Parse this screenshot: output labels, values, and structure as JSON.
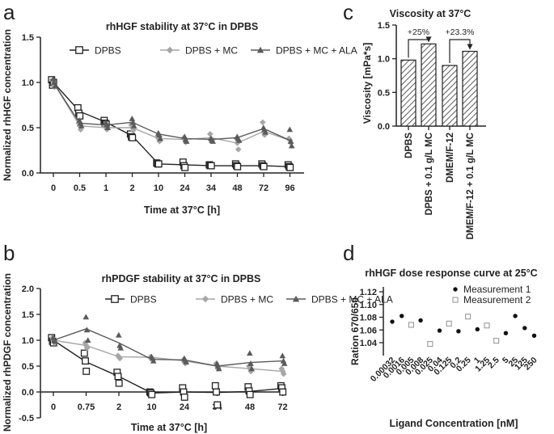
{
  "panel_letters": [
    "a",
    "b",
    "c",
    "d"
  ],
  "chart_data": [
    {
      "panel": "a",
      "type": "line",
      "title": "rhHGF stability at 37°C in DPBS",
      "xlabel": "Time at 37°C [h]",
      "ylabel": "Normalized rhHGF concentration",
      "categories": [
        "0",
        "0.5",
        "1",
        "2",
        "10",
        "24",
        "34",
        "48",
        "72",
        "96"
      ],
      "ylim": [
        0,
        1.5
      ],
      "yticks": [
        "0.0",
        "0.5",
        "1.0",
        "1.5"
      ],
      "legend_position": "top",
      "series": [
        {
          "name": "DPBS",
          "marker": "square-open",
          "color": "#222222",
          "mean": [
            1.0,
            0.68,
            0.56,
            0.41,
            0.1,
            0.09,
            0.08,
            0.08,
            0.08,
            0.07
          ],
          "points": [
            [
              1.03,
              0.97,
              1.0
            ],
            [
              0.72,
              0.66,
              0.63
            ],
            [
              0.58,
              0.55,
              0.54
            ],
            [
              0.43,
              0.4,
              0.39
            ],
            [
              0.11,
              0.1,
              0.1
            ],
            [
              0.12,
              0.08,
              0.06
            ],
            [
              0.09,
              0.08,
              0.08
            ],
            [
              0.1,
              0.08,
              0.07
            ],
            [
              0.1,
              0.08,
              0.07
            ],
            [
              0.09,
              0.07,
              0.06
            ]
          ]
        },
        {
          "name": "DPBS + MC",
          "marker": "diamond",
          "color": "#a6a6a6",
          "mean": [
            1.0,
            0.52,
            0.5,
            0.5,
            0.38,
            0.37,
            0.39,
            0.33,
            0.46,
            0.36
          ],
          "points": [
            [
              1.02,
              0.98,
              0.95
            ],
            [
              0.55,
              0.52,
              0.48
            ],
            [
              0.52,
              0.5,
              0.48
            ],
            [
              0.53,
              0.5,
              0.47
            ],
            [
              0.4,
              0.38,
              0.35
            ],
            [
              0.39,
              0.37,
              0.34
            ],
            [
              0.43,
              0.38,
              0.36
            ],
            [
              0.38,
              0.33,
              0.26
            ],
            [
              0.56,
              0.45,
              0.42
            ],
            [
              0.38,
              0.36,
              0.33
            ]
          ]
        },
        {
          "name": "DPBS + MC + ALA",
          "marker": "triangle",
          "color": "#5a5a5a",
          "mean": [
            1.0,
            0.55,
            0.53,
            0.56,
            0.43,
            0.38,
            0.37,
            0.39,
            0.49,
            0.36
          ],
          "points": [
            [
              1.04,
              1.0,
              0.96
            ],
            [
              0.58,
              0.55,
              0.52
            ],
            [
              0.56,
              0.53,
              0.5
            ],
            [
              0.6,
              0.56,
              0.52
            ],
            [
              0.44,
              0.42,
              0.38
            ],
            [
              0.4,
              0.37,
              0.35
            ],
            [
              0.38,
              0.36,
              0.35
            ],
            [
              0.4,
              0.38,
              0.36
            ],
            [
              0.5,
              0.48,
              0.45
            ],
            [
              0.48,
              0.35,
              0.3
            ]
          ]
        }
      ]
    },
    {
      "panel": "b",
      "type": "line",
      "title": "rhPDGF stability at 37°C in DPBS",
      "xlabel": "Time at 37°C [h]",
      "ylabel": "Normalized rhPDGF concentration",
      "categories": [
        "0",
        "0.75",
        "2",
        "10",
        "24",
        "34",
        "48",
        "72"
      ],
      "ylim": [
        -0.5,
        2.0
      ],
      "yticks": [
        "-0.5",
        "0.0",
        "0.5",
        "1.0",
        "1.5",
        "2.0"
      ],
      "legend_position": "top",
      "series": [
        {
          "name": "DPBS",
          "marker": "square-open",
          "color": "#222222",
          "mean": [
            1.0,
            0.58,
            0.3,
            -0.02,
            0.0,
            -0.01,
            0.01,
            0.07
          ],
          "points": [
            [
              1.05,
              0.98,
              0.95
            ],
            [
              0.75,
              0.6,
              0.4
            ],
            [
              0.38,
              0.3,
              0.17
            ],
            [
              0.0,
              -0.02,
              -0.05
            ],
            [
              0.08,
              0.0,
              -0.1
            ],
            [
              0.12,
              0.0,
              -0.25
            ],
            [
              0.1,
              0.02,
              -0.05
            ],
            [
              0.12,
              0.08,
              0.0
            ]
          ]
        },
        {
          "name": "DPBS + MC",
          "marker": "diamond",
          "color": "#a6a6a6",
          "mean": [
            1.0,
            0.9,
            0.68,
            0.67,
            0.6,
            0.5,
            0.45,
            0.4
          ],
          "points": [
            [
              1.05,
              1.0,
              0.95
            ],
            [
              0.95,
              0.9,
              0.85
            ],
            [
              0.7,
              0.68,
              0.65
            ],
            [
              0.68,
              0.66,
              0.64
            ],
            [
              0.62,
              0.58,
              0.55
            ],
            [
              0.55,
              0.5,
              0.45
            ],
            [
              0.5,
              0.45,
              0.4
            ],
            [
              0.45,
              0.4,
              0.35
            ]
          ]
        },
        {
          "name": "DPBS + MC + ALA",
          "marker": "triangle",
          "color": "#5a5a5a",
          "mean": [
            1.0,
            1.22,
            0.95,
            0.63,
            0.62,
            0.5,
            0.57,
            0.6
          ],
          "points": [
            [
              1.05,
              1.0,
              0.98
            ],
            [
              1.45,
              1.2,
              1.0
            ],
            [
              1.1,
              0.9,
              0.85
            ],
            [
              0.68,
              0.65,
              0.6
            ],
            [
              0.65,
              0.62,
              0.58
            ],
            [
              0.55,
              0.5,
              0.45
            ],
            [
              0.75,
              0.55,
              0.45
            ],
            [
              0.7,
              0.6,
              0.55
            ]
          ]
        }
      ]
    },
    {
      "panel": "c",
      "type": "bar",
      "title": "Viscosity at 37°C",
      "xlabel": "",
      "ylabel": "Viscosity [mPa*s]",
      "categories": [
        "DPBS",
        "DPBS + 0.1 g/L MC",
        "DMEM/F-12",
        "DMEM/F-12 + 0.1 g/L MC"
      ],
      "values": [
        0.98,
        1.22,
        0.9,
        1.11
      ],
      "ylim": [
        0,
        1.5
      ],
      "yticks": [
        "0.0",
        "0.5",
        "1.0",
        "1.5"
      ],
      "fill": "hatched",
      "annotations": [
        "+25%",
        "+23.3%"
      ]
    },
    {
      "panel": "d",
      "type": "scatter",
      "title": "rhHGF dose response curve at 25°C",
      "xlabel": "Ligand Concentration [nM]",
      "ylabel": "Ration 670/650",
      "categories": [
        "0.00032",
        "0.0016",
        "0.005",
        "0.008",
        "0.025",
        "0.04",
        "0.125",
        "0.2",
        "0.25",
        "1",
        "1.25",
        "2.5",
        "5",
        "25",
        "125",
        "250"
      ],
      "ylim": [
        1.03,
        1.12
      ],
      "yticks": [
        "1.04",
        "1.06",
        "1.08",
        "1.10",
        "1.12"
      ],
      "legend_position": "top-right",
      "series": [
        {
          "name": "Measurement 1",
          "marker": "circle-filled",
          "color": "#111111",
          "points": [
            [
              "0.00032",
              1.073
            ],
            [
              "0.0016",
              1.082
            ],
            [
              "0.008",
              1.075
            ],
            [
              "0.04",
              1.059
            ],
            [
              "0.2",
              1.058
            ],
            [
              "1",
              1.061
            ],
            [
              "5",
              1.055
            ],
            [
              "25",
              1.082
            ],
            [
              "125",
              1.063
            ],
            [
              "250",
              1.051
            ]
          ]
        },
        {
          "name": "Measurement 2",
          "marker": "square-open",
          "color": "#999999",
          "points": [
            [
              "0.005",
              1.068
            ],
            [
              "0.025",
              1.038
            ],
            [
              "0.125",
              1.07
            ],
            [
              "0.25",
              1.081
            ],
            [
              "1.25",
              1.067
            ],
            [
              "2.5",
              1.043
            ]
          ]
        }
      ]
    }
  ]
}
